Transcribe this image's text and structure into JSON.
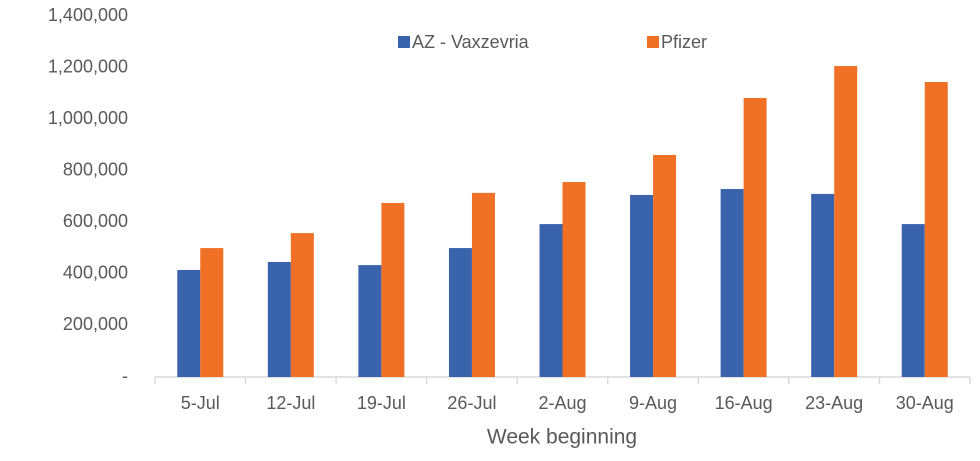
{
  "chart_data": {
    "type": "bar",
    "xlabel": "Week beginning",
    "categories": [
      "5-Jul",
      "12-Jul",
      "19-Jul",
      "26-Jul",
      "2-Aug",
      "9-Aug",
      "16-Aug",
      "23-Aug",
      "30-Aug"
    ],
    "series": [
      {
        "name": "AZ - Vaxzevria",
        "color": "#3a63ad",
        "values": [
          415000,
          446000,
          434000,
          500000,
          593000,
          706000,
          729000,
          710000,
          593000
        ]
      },
      {
        "name": "Pfizer",
        "color": "#f07126",
        "values": [
          500000,
          558000,
          675000,
          714000,
          756000,
          861000,
          1082000,
          1206000,
          1144000
        ]
      }
    ],
    "ylim": [
      0,
      1400000
    ],
    "yticks": [
      {
        "value": 0,
        "label": "-"
      },
      {
        "value": 200000,
        "label": "200,000"
      },
      {
        "value": 400000,
        "label": "400,000"
      },
      {
        "value": 600000,
        "label": "600,000"
      },
      {
        "value": 800000,
        "label": "800,000"
      },
      {
        "value": 1000000,
        "label": "1,000,000"
      },
      {
        "value": 1200000,
        "label": "1,200,000"
      },
      {
        "value": 1400000,
        "label": "1,400,000"
      }
    ],
    "grid": false,
    "legend": "top"
  }
}
